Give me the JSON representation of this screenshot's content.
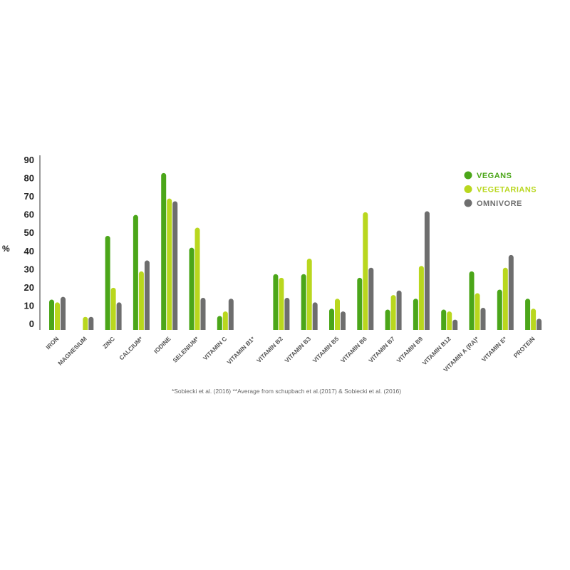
{
  "chart_data": {
    "type": "bar",
    "ylabel": "%",
    "ylim": [
      0,
      90
    ],
    "yticks": [
      0,
      10,
      20,
      30,
      40,
      50,
      60,
      70,
      80,
      90
    ],
    "grid": false,
    "legend_position": "top-right",
    "categories": [
      "IRON",
      "MAGNESIUM",
      "ZINC",
      "CALCIUM*",
      "IODINE",
      "SELENIUM*",
      "VITAMIN C",
      "VITAMIN B1*",
      "VITAMIN B2",
      "VITAMIN B3",
      "VITAMIN B5",
      "VITAMIN B6",
      "VITAMIN B7",
      "VITAMIN B9",
      "VITAMIN B12",
      "VITAMIN A (RA)*",
      "VITAMIN E*",
      "PROTEIN"
    ],
    "series": [
      {
        "name": "VEGANS",
        "color": "#4ba619",
        "values": [
          13.5,
          0,
          48.5,
          60,
          83,
          42,
          4.5,
          0,
          27.5,
          27.5,
          8.5,
          25.5,
          8,
          14,
          8,
          29,
          19,
          14
        ]
      },
      {
        "name": "VEGETARIANS",
        "color": "#b9d71e",
        "values": [
          12,
          4,
          20,
          29,
          69,
          53,
          7,
          0,
          25.5,
          36,
          14,
          61.5,
          16,
          32,
          7,
          17,
          31,
          8.5
        ]
      },
      {
        "name": "OMNIVORE",
        "color": "#6e6e6e",
        "values": [
          15,
          4,
          12,
          35,
          67.5,
          14.5,
          14,
          0,
          14.5,
          12,
          7,
          31,
          18.5,
          62,
          2.5,
          9,
          38,
          3
        ]
      }
    ],
    "footnote": "*Sobiecki et al. (2016)     **Average from schupbach et al.(2017) & Sobiecki et al. (2016)"
  }
}
